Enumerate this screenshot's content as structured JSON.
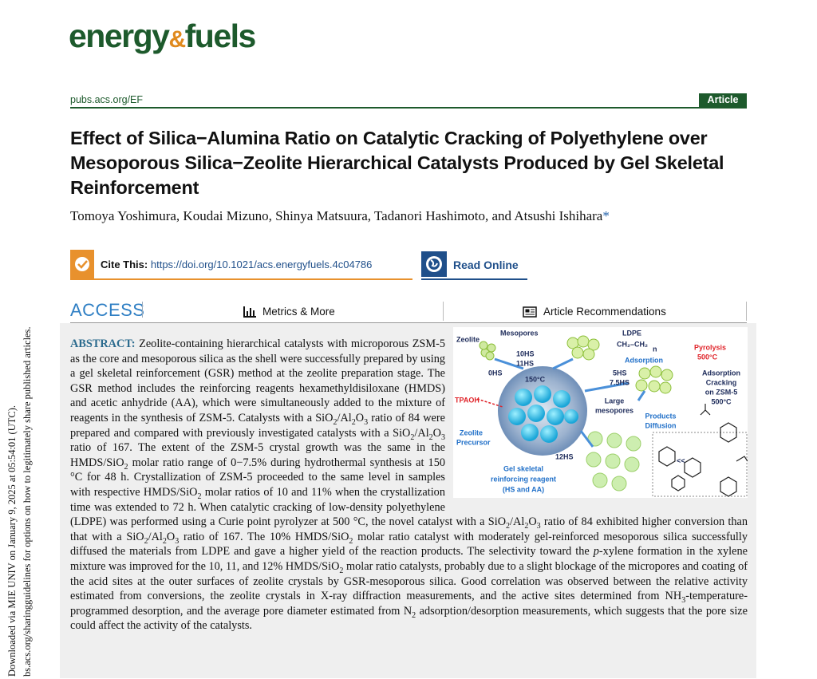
{
  "journal": {
    "logo": {
      "part1": "energy",
      "amp": "&",
      "part2": "fuels"
    },
    "url": "pubs.acs.org/EF",
    "article_type": "Article"
  },
  "title": "Effect of Silica−Alumina Ratio on Catalytic Cracking of Polyethylene over Mesoporous Silica−Zeolite Hierarchical Catalysts Produced by Gel Skeletal Reinforcement",
  "authors": {
    "names": "Tomoya Yoshimura, Koudai Mizuno, Shinya Matsuura, Tadanori Hashimoto, and Atsushi Ishihara",
    "corresponding_mark": "*"
  },
  "cite": {
    "label": "Cite This:",
    "doi": "https://doi.org/10.1021/acs.energyfuels.4c04786"
  },
  "read_online": "Read Online",
  "access": {
    "label": "ACCESS",
    "metrics": "Metrics & More",
    "recommendations": "Article Recommendations"
  },
  "abstract": {
    "label": "ABSTRACT:",
    "runs": [
      {
        "text": " Zeolite-containing hierarchical catalysts with microporous ZSM-5 as the core and mesoporous silica as the shell were successfully prepared by using a gel skeletal reinforcement (GSR) method at the zeolite preparation stage. The GSR method includes the reinforcing reagents hexamethyldisiloxane (HMDS) and acetic anhydride (AA), which were simultaneously added to the mixture of reagents in the synthesis of ZSM-5. Catalysts with a SiO"
      },
      {
        "sub": "2"
      },
      {
        "text": "/Al"
      },
      {
        "sub": "2"
      },
      {
        "text": "O"
      },
      {
        "sub": "3"
      },
      {
        "text": " ratio of 84 were prepared and compared with previously investigated catalysts with a SiO"
      },
      {
        "sub": "2"
      },
      {
        "text": "/Al"
      },
      {
        "sub": "2"
      },
      {
        "text": "O"
      },
      {
        "sub": "3"
      },
      {
        "text": " ratio of 167. The extent of the ZSM-5 crystal growth was the same in the HMDS/SiO"
      },
      {
        "sub": "2"
      },
      {
        "text": " molar ratio range of 0−7.5% during hydrothermal synthesis at 150 °C for 48 h. Crystallization of ZSM-5 proceeded to the same level in samples with respective HMDS/SiO"
      },
      {
        "sub": "2"
      },
      {
        "text": " molar ratios of 10 and 11% when the crystallization time was extended to 72 h. When catalytic cracking of low-density polyethylene (LDPE) was performed using a Curie point pyrolyzer at 500 °C, the novel catalyst with a SiO"
      },
      {
        "sub": "2"
      },
      {
        "text": "/Al"
      },
      {
        "sub": "2"
      },
      {
        "text": "O"
      },
      {
        "sub": "3"
      },
      {
        "text": " ratio of 84 exhibited higher conversion than that with a SiO"
      },
      {
        "sub": "2"
      },
      {
        "text": "/Al"
      },
      {
        "sub": "2"
      },
      {
        "text": "O"
      },
      {
        "sub": "3"
      },
      {
        "text": " ratio of 167. The 10% HMDS/SiO"
      },
      {
        "sub": "2"
      },
      {
        "text": " molar ratio catalyst with moderately gel-reinforced mesoporous silica successfully diffused the materials from LDPE and gave a higher yield of the reaction products. The selectivity toward the "
      },
      {
        "italic": "p"
      },
      {
        "text": "-xylene formation in the xylene mixture was improved for the 10, 11, and 12% HMDS/SiO"
      },
      {
        "sub": "2"
      },
      {
        "text": " molar ratio catalysts, probably due to a slight blockage of the micropores and coating of the acid sites at the outer surfaces of zeolite crystals by GSR-mesoporous silica. Good correlation was observed between the relative activity estimated from conversions, the zeolite crystals in X-ray diffraction measurements, and the active sites determined from NH"
      },
      {
        "sub": "3"
      },
      {
        "text": "-temperature-programmed desorption, and the average pore diameter estimated from N"
      },
      {
        "sub": "2"
      },
      {
        "text": " adsorption/desorption measurements, which suggests that the pore size could affect the activity of the catalysts."
      }
    ]
  },
  "figure": {
    "labels": [
      "Zeolite",
      "Mesopores",
      "10HS",
      "11HS",
      "0HS",
      "150°C",
      "LDPE",
      "CH₂–CH₂",
      "n",
      "Pyrolysis",
      "500°C",
      "Adsorption",
      "5HS",
      "7.5HS",
      "Adsorption",
      "Cracking",
      "on ZSM-5",
      "500°C",
      "TPAOH",
      "Large",
      "mesopores",
      "Products",
      "Diffusion",
      "Zeolite",
      "Precursor",
      "12HS",
      "Gel skeletal",
      "reinforcing reagent",
      "(HS and AA)",
      "<<"
    ]
  },
  "side_note": {
    "line1": "Downloaded via MIE UNIV on January 9, 2025 at 05:54:01 (UTC).",
    "line2": "bs.acs.org/sharingguidelines for options on how to legitimately share published articles."
  }
}
